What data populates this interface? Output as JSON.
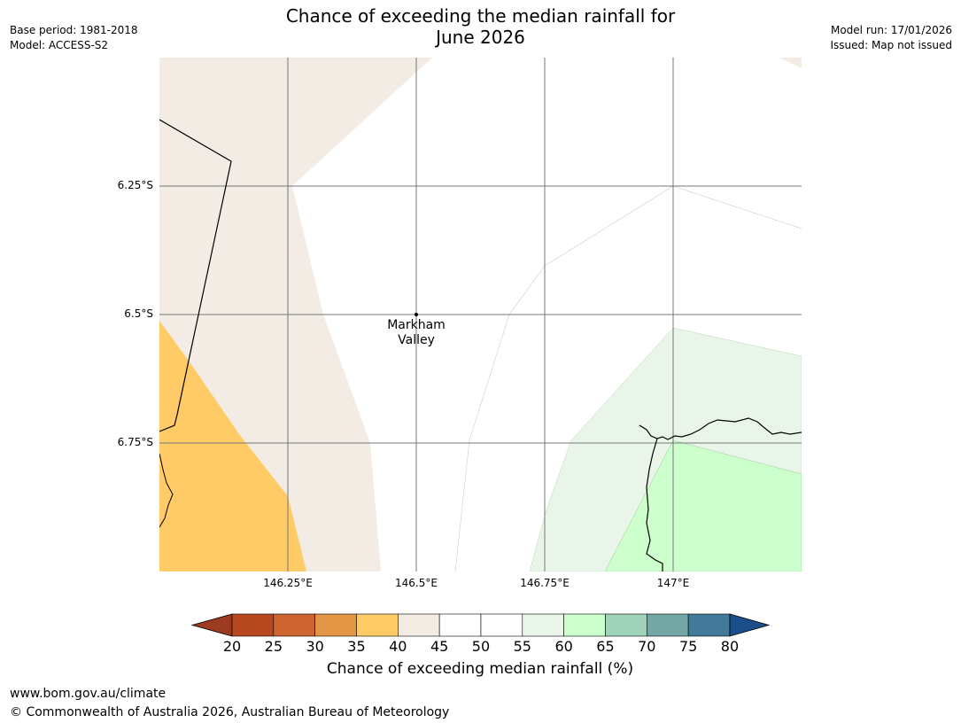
{
  "title": {
    "line1": "Chance of exceeding the median rainfall for",
    "line2": "June 2026"
  },
  "header_left": {
    "base_period": "Base period: 1981-2018",
    "model": "Model: ACCESS-S2"
  },
  "header_right": {
    "model_run": "Model run: 17/01/2026",
    "issued": "Issued: Map not issued"
  },
  "map": {
    "lat_labels": [
      "6.25°S",
      "6.5°S",
      "6.75°S"
    ],
    "lon_labels": [
      "146.25°E",
      "146.5°E",
      "146.75°E",
      "147°E"
    ],
    "town": {
      "line1": "Markham",
      "line2": "Valley"
    }
  },
  "colorbar": {
    "ticks": [
      "20",
      "25",
      "30",
      "35",
      "40",
      "45",
      "50",
      "55",
      "60",
      "65",
      "70",
      "75",
      "80"
    ],
    "colors": [
      "#9c3b1f",
      "#b5481f",
      "#cf6530",
      "#e39545",
      "#ffcb67",
      "#f2ece5",
      "#ffffff",
      "#ffffff",
      "#eaf5ea",
      "#ccffcc",
      "#9ed3ba",
      "#73a7a6",
      "#437a9a",
      "#1a4f8c"
    ],
    "label": "Chance of exceeding median rainfall (%)"
  },
  "footer": {
    "url": "www.bom.gov.au/climate",
    "copyright": "© Commonwealth of Australia 2026, Australian Bureau of Meteorology"
  }
}
